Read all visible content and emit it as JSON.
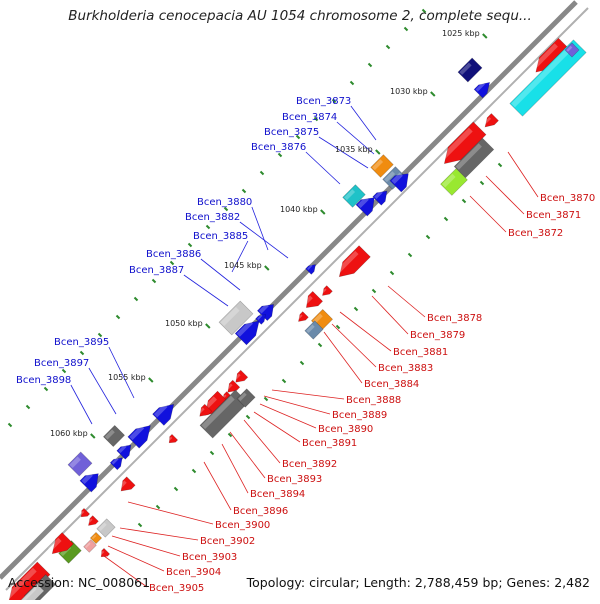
{
  "title": "Burkholderia cenocepacia AU 1054 chromosome 2, complete sequ...",
  "footer": {
    "accession": "Accession: NC_008061",
    "topology": "Topology: circular; Length: 2,788,459 bp; Genes: 2,482"
  },
  "colors": {
    "backbone": "#888888",
    "tick": "#2e8b2e",
    "forward_label": "#1010cc",
    "reverse_label": "#cc1010"
  },
  "kbp_ticks": [
    "1025 kbp",
    "1030 kbp",
    "1035 kbp",
    "1040 kbp",
    "1045 kbp",
    "1050 kbp",
    "1055 kbp",
    "1060 kbp"
  ],
  "forward_genes": [
    "Bcen_3873",
    "Bcen_3874",
    "Bcen_3875",
    "Bcen_3876",
    "Bcen_3880",
    "Bcen_3882",
    "Bcen_3885",
    "Bcen_3886",
    "Bcen_3887",
    "Bcen_3895",
    "Bcen_3897",
    "Bcen_3898"
  ],
  "reverse_genes": [
    "Bcen_3870",
    "Bcen_3871",
    "Bcen_3872",
    "Bcen_3878",
    "Bcen_3879",
    "Bcen_3881",
    "Bcen_3883",
    "Bcen_3884",
    "Bcen_3888",
    "Bcen_3889",
    "Bcen_3890",
    "Bcen_3891",
    "Bcen_3892",
    "Bcen_3893",
    "Bcen_3894",
    "Bcen_3896",
    "Bcen_3900",
    "Bcen_3902",
    "Bcen_3903",
    "Bcen_3904",
    "Bcen_3905"
  ]
}
